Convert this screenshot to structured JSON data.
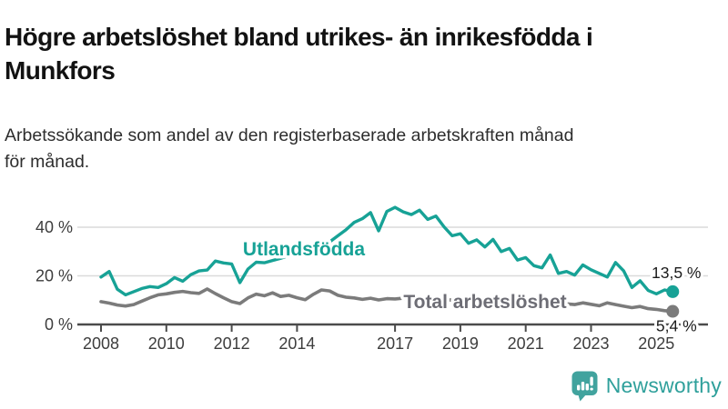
{
  "header": {
    "title": "Högre arbetslöshet bland utrikes- än inrikesfödda i\nMunkfors",
    "subtitle": "Arbetssökande som andel av den registerbaserade arbetskraften månad\nför månad."
  },
  "chart_data": {
    "type": "line",
    "title": "Högre arbetslöshet bland utrikes- än inrikesfödda i Munkfors",
    "subtitle": "Arbetssökande som andel av den registerbaserade arbetskraften månad för månad.",
    "unit": "%",
    "x_start": 2008,
    "x_step": 0.25,
    "xticks": [
      2008,
      2010,
      2012,
      2014,
      2017,
      2019,
      2021,
      2023,
      2025
    ],
    "yticks": [
      {
        "v": 0,
        "label": "0 %"
      },
      {
        "v": 20,
        "label": "20 %"
      },
      {
        "v": 40,
        "label": "40 %"
      }
    ],
    "ylim": [
      0,
      50
    ],
    "grid": "horizontal",
    "grid_color": "#dadada",
    "axis_color": "#4b4b4b",
    "tick_label_color": "#3d3d3d",
    "annotation_color": "#1b1b1b",
    "series": [
      {
        "name": "Utlandsfödda",
        "color": "#17a296",
        "end_label": "13,5 %",
        "end_value": 13.5,
        "values": [
          19.5,
          21.8,
          14.5,
          12.2,
          13.5,
          14.8,
          15.6,
          15.2,
          16.8,
          19.3,
          17.8,
          20.5,
          22.0,
          22.4,
          26.1,
          25.3,
          24.9,
          17.2,
          22.8,
          25.6,
          25.4,
          26.3,
          27.2,
          28.3,
          28.1,
          29.8,
          31.4,
          33.2,
          34.0,
          36.5,
          39.0,
          42.0,
          43.5,
          46.0,
          38.5,
          46.5,
          48.2,
          46.3,
          45.2,
          47.0,
          43.2,
          44.6,
          40.2,
          36.5,
          37.3,
          33.4,
          34.8,
          31.9,
          35.0,
          30.0,
          31.3,
          26.5,
          27.5,
          24.2,
          23.3,
          28.6,
          21.0,
          21.8,
          20.3,
          24.5,
          22.5,
          21.0,
          19.5,
          25.5,
          22.0,
          15.2,
          18.0,
          14.0,
          12.6,
          14.2,
          13.5
        ]
      },
      {
        "name": "Total arbetslöshet",
        "color": "#7b7b7b",
        "label_color": "#6d6d75",
        "end_label": "5,4 %",
        "end_value": 5.4,
        "values": [
          9.4,
          8.8,
          8.0,
          7.6,
          8.2,
          9.6,
          11.0,
          12.2,
          12.6,
          13.2,
          13.6,
          13.1,
          12.8,
          14.6,
          12.7,
          11.0,
          9.4,
          8.6,
          10.9,
          12.5,
          11.8,
          13.0,
          11.5,
          12.0,
          11.0,
          10.2,
          12.4,
          14.2,
          13.8,
          12.0,
          11.2,
          10.9,
          10.3,
          10.8,
          10.1,
          10.6,
          10.5,
          10.8,
          10.2,
          10.4,
          10.3,
          9.9,
          10.4,
          10.0,
          9.8,
          10.1,
          9.6,
          9.9,
          10.2,
          10.6,
          10.1,
          9.8,
          9.5,
          9.2,
          9.4,
          9.7,
          9.0,
          8.5,
          8.2,
          8.9,
          8.3,
          7.7,
          8.9,
          8.2,
          7.5,
          6.9,
          7.4,
          6.5,
          6.2,
          5.7,
          5.4
        ]
      }
    ]
  },
  "branding": {
    "logo_text": "Newsworthy",
    "logo_icon": "bar-chart-speech-bubble-icon",
    "logo_color": "#2fa09b",
    "logo_icon_color": "#41a39e"
  }
}
